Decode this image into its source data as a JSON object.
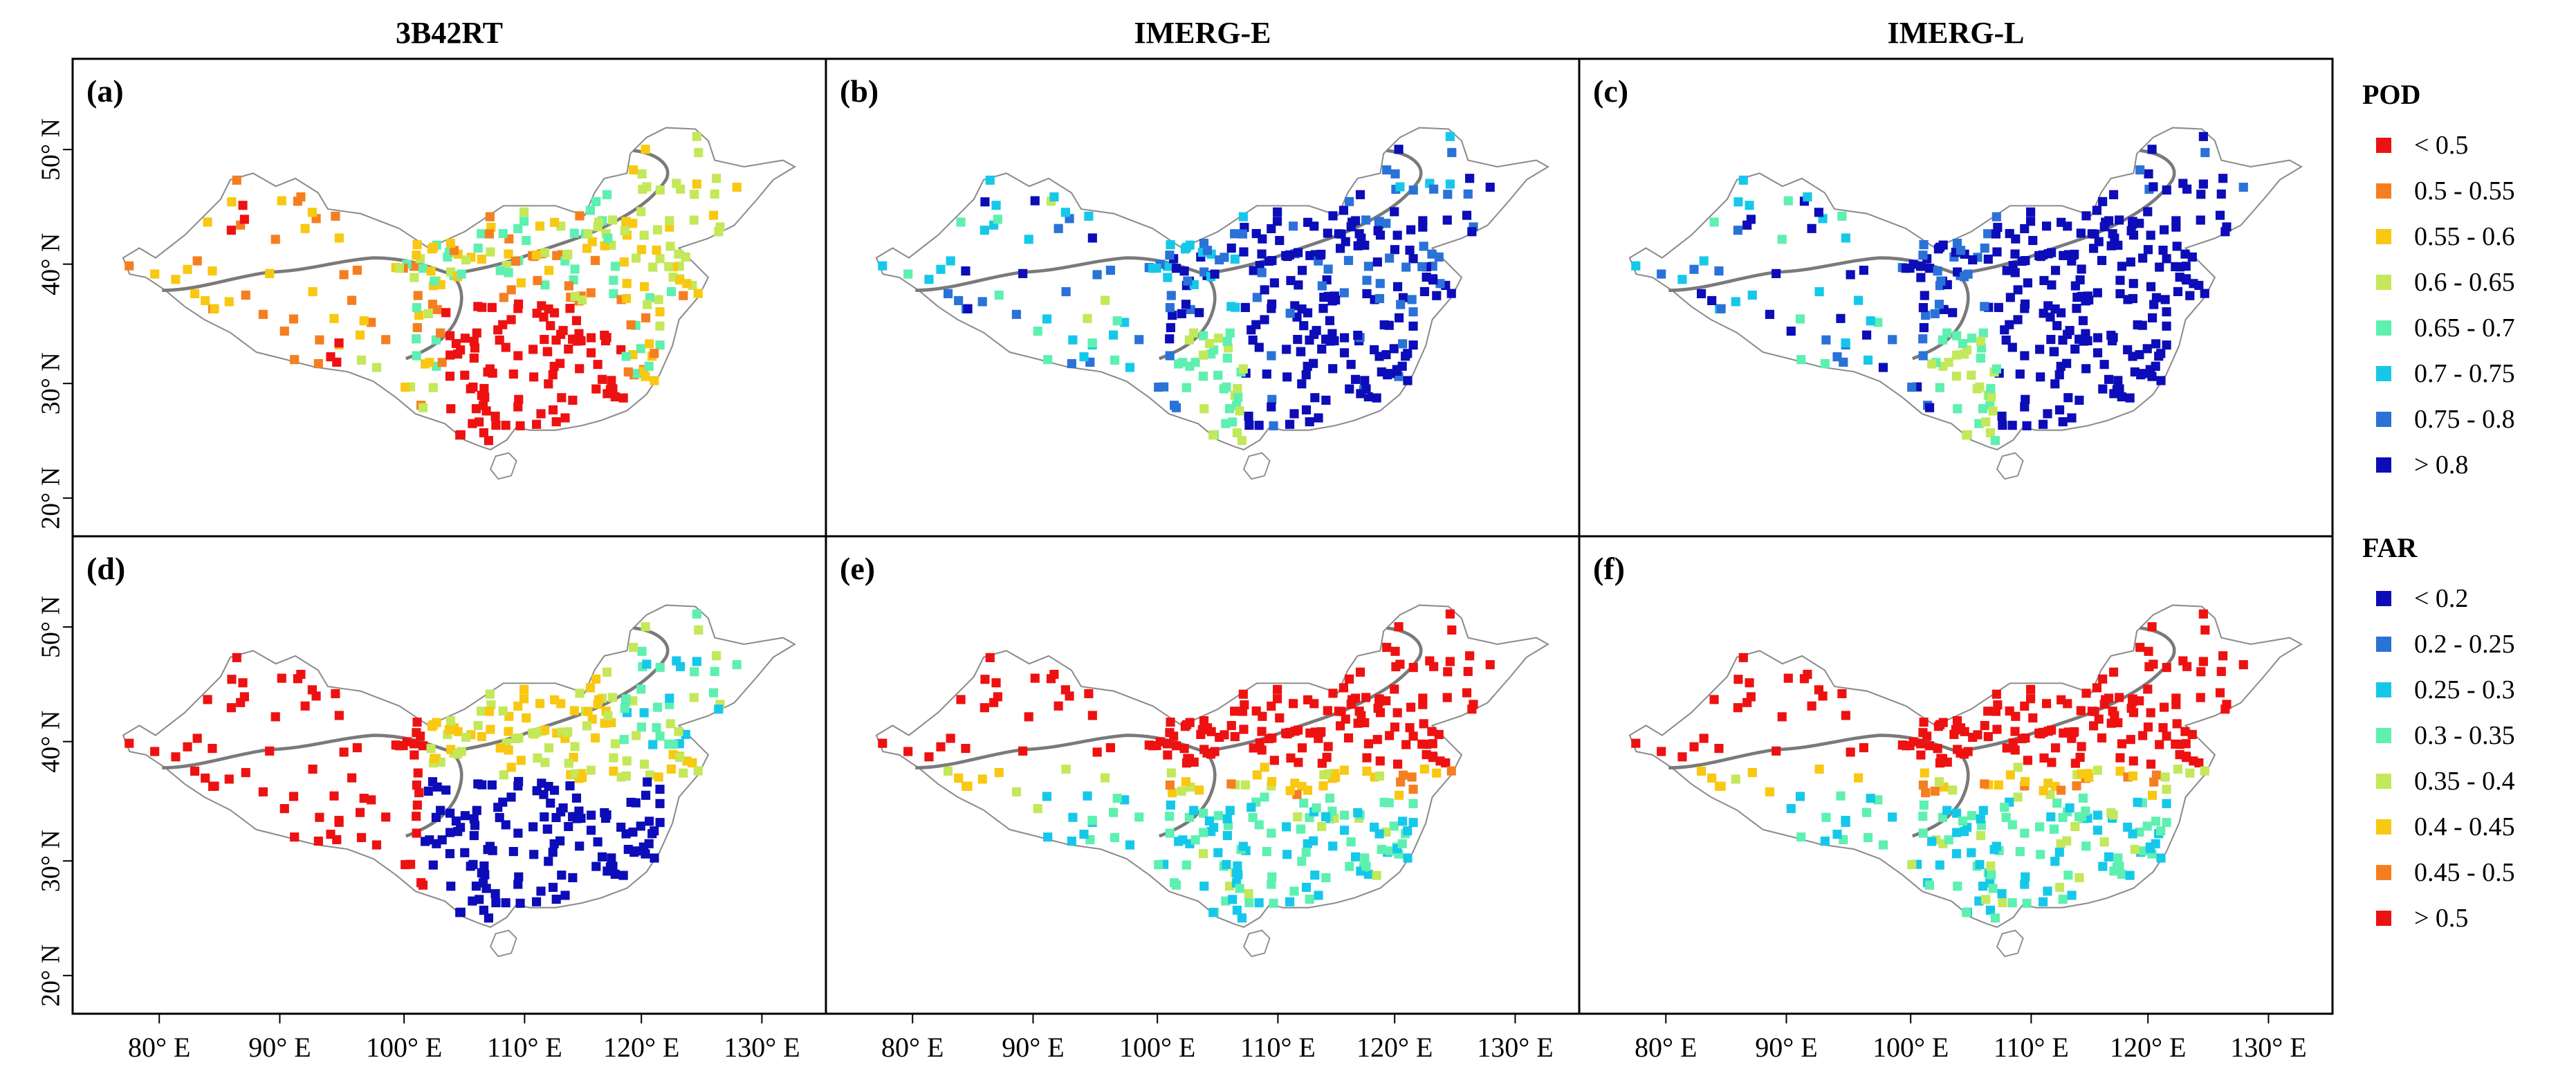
{
  "columns": [
    "3B42RT",
    "IMERG-E",
    "IMERG-L"
  ],
  "x_ticks": [
    "80° E",
    "90° E",
    "100° E",
    "110° E",
    "120° E",
    "130° E"
  ],
  "y_ticks": [
    "50° N",
    "40° N",
    "30° N",
    "20° N"
  ],
  "panels": [
    {
      "label": "(a)",
      "metric": "POD",
      "product": "3B42RT"
    },
    {
      "label": "(b)",
      "metric": "POD",
      "product": "IMERG-E"
    },
    {
      "label": "(c)",
      "metric": "POD",
      "product": "IMERG-L"
    },
    {
      "label": "(d)",
      "metric": "FAR",
      "product": "3B42RT"
    },
    {
      "label": "(e)",
      "metric": "FAR",
      "product": "IMERG-E"
    },
    {
      "label": "(f)",
      "metric": "FAR",
      "product": "IMERG-L"
    }
  ],
  "legends": {
    "POD": {
      "title": "POD",
      "items": [
        {
          "label": "< 0.5",
          "color": "#ee1111"
        },
        {
          "label": "0.5 - 0.55",
          "color": "#f57f20"
        },
        {
          "label": "0.55 - 0.6",
          "color": "#f8c812"
        },
        {
          "label": "0.6 - 0.65",
          "color": "#c3e85a"
        },
        {
          "label": "0.65 - 0.7",
          "color": "#5ef0b0"
        },
        {
          "label": "0.7 - 0.75",
          "color": "#15c8ea"
        },
        {
          "label": "0.75 - 0.8",
          "color": "#2a72d8"
        },
        {
          "label": "> 0.8",
          "color": "#0c0cb8"
        }
      ]
    },
    "FAR": {
      "title": "FAR",
      "items": [
        {
          "label": "< 0.2",
          "color": "#0c0cb8"
        },
        {
          "label": "0.2 - 0.25",
          "color": "#2a72d8"
        },
        {
          "label": "0.25 - 0.3",
          "color": "#15c8ea"
        },
        {
          "label": "0.3 - 0.35",
          "color": "#5ef0b0"
        },
        {
          "label": "0.35 - 0.4",
          "color": "#c3e85a"
        },
        {
          "label": "0.4 - 0.45",
          "color": "#f8c812"
        },
        {
          "label": "0.45 - 0.5",
          "color": "#f57f20"
        },
        {
          "label": "> 0.5",
          "color": "#ee1111"
        }
      ]
    }
  }
}
